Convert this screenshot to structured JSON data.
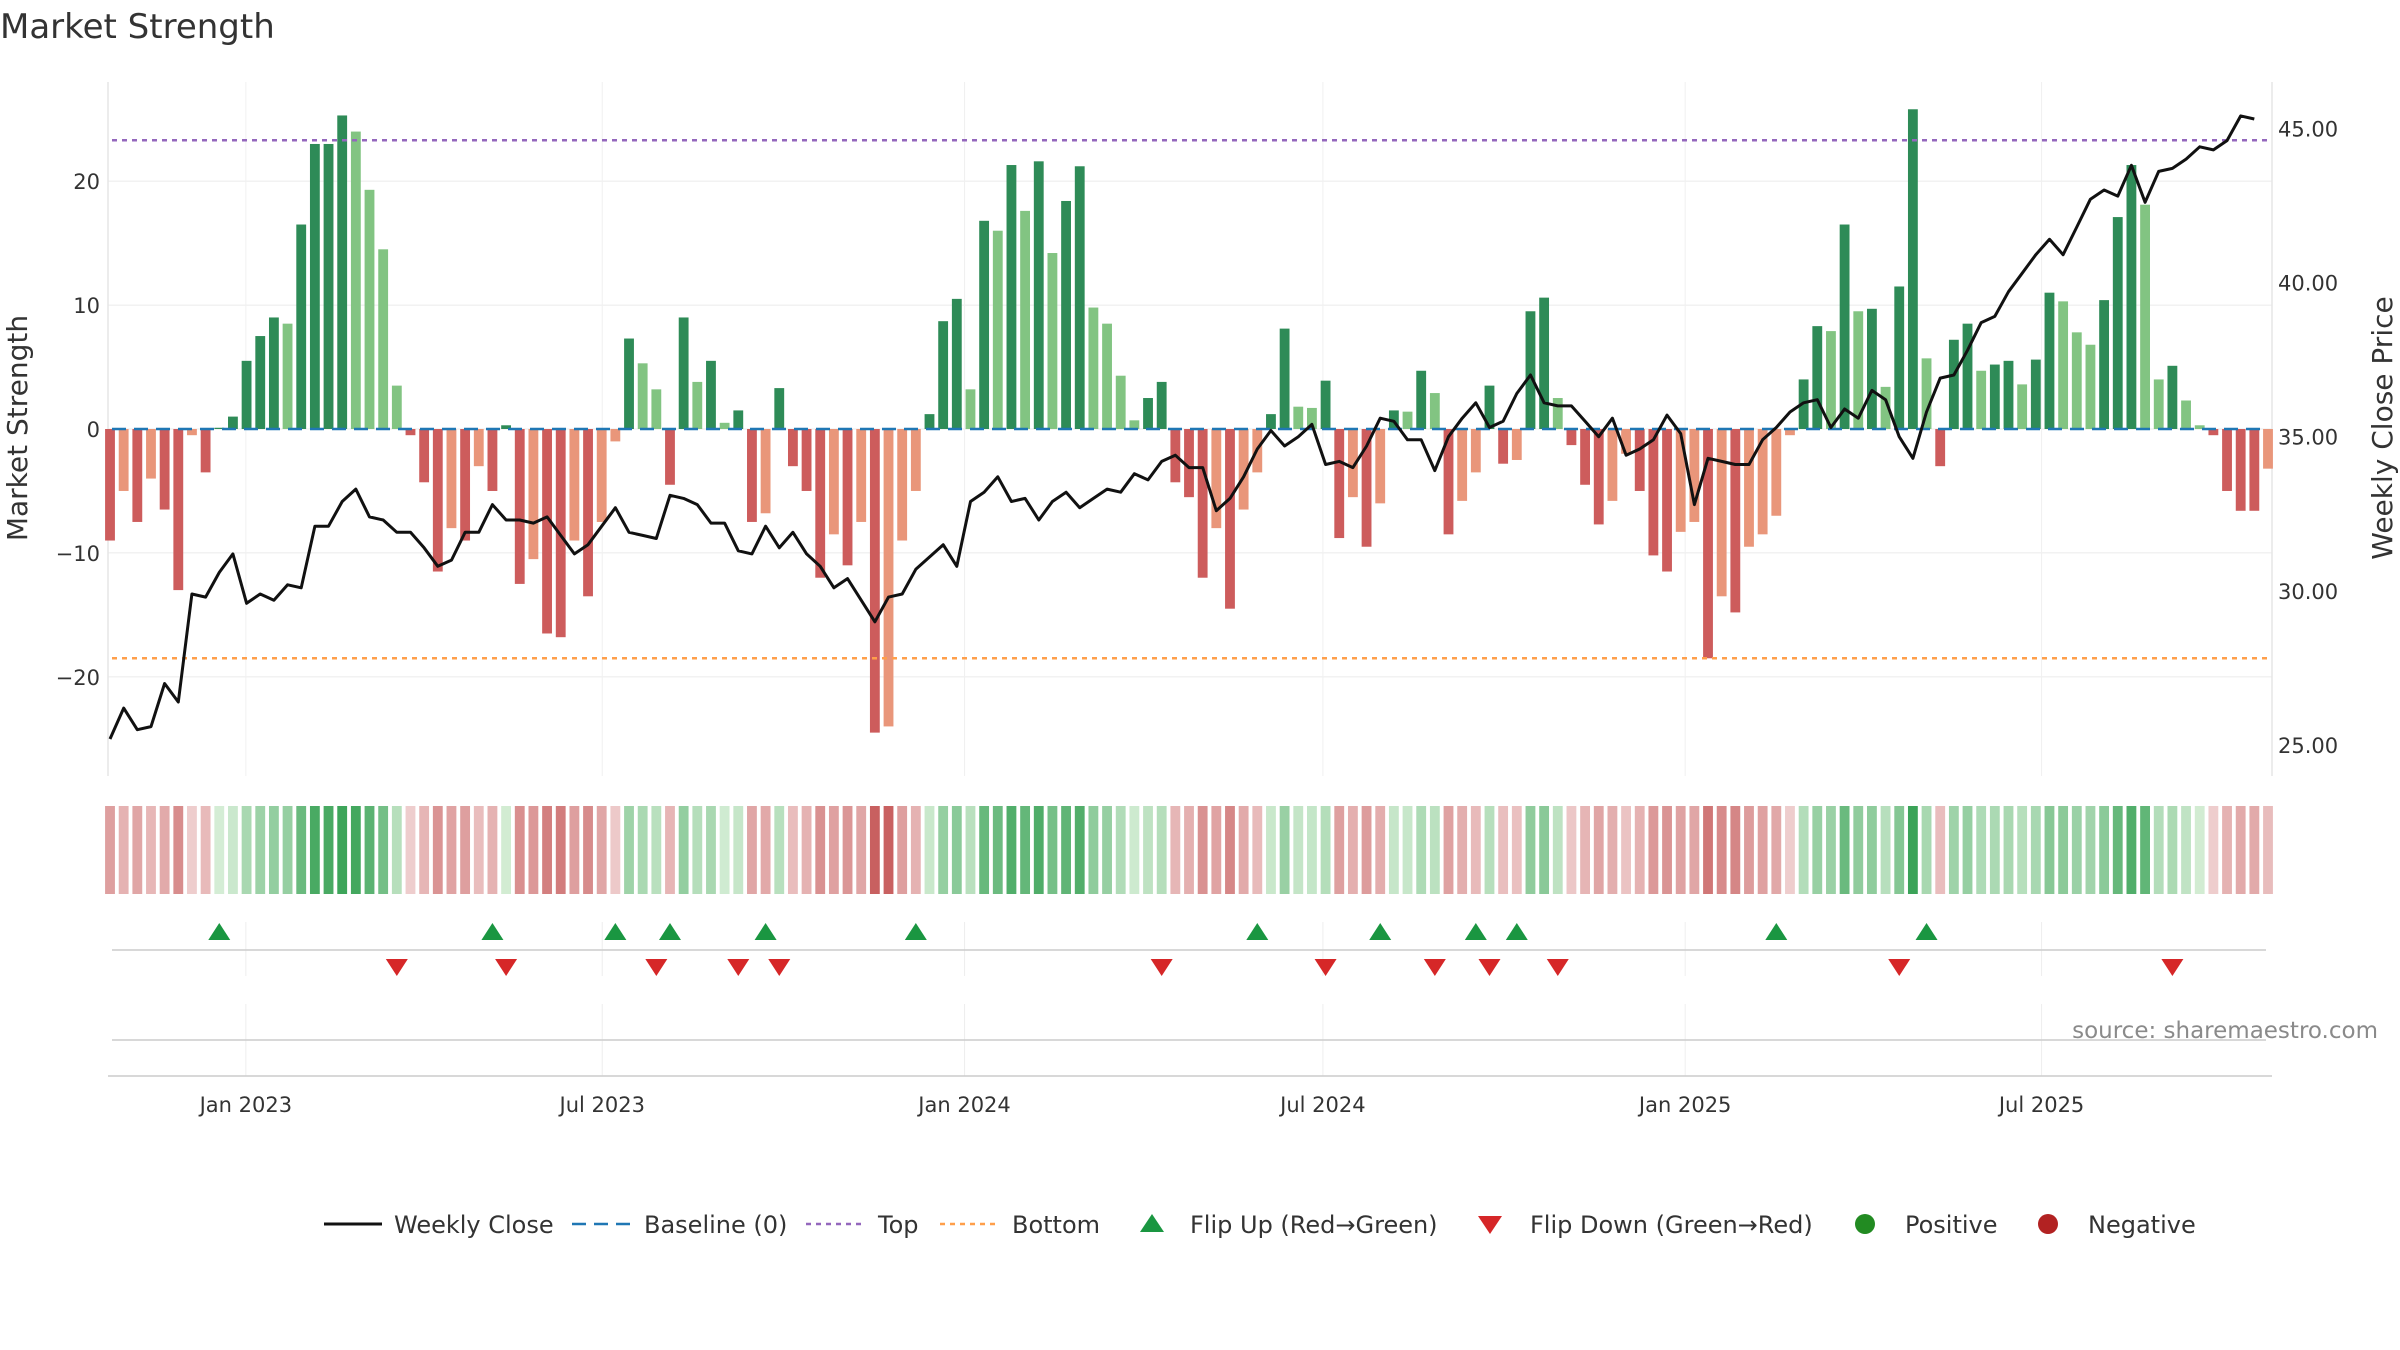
{
  "chart_data": {
    "type": "bar",
    "title": "Market Strength",
    "ylabel": "Market Strength",
    "ylabel_right": "Weekly Close Price",
    "source": "source: sharemaestro.com",
    "ylim": [
      -28,
      28
    ],
    "ylim_right": [
      24.0,
      46.5
    ],
    "yticks": [
      -20,
      -10,
      0,
      10,
      20
    ],
    "yticks_right": [
      "25.00",
      "30.00",
      "35.00",
      "40.00",
      "45.00"
    ],
    "x_start": "2022-10-24",
    "x_end": "2025-10-24",
    "top_level": 23.3,
    "bottom_level": -18.5,
    "x_ticks": [
      {
        "label": "Jan 2023",
        "date": "2023-01-01"
      },
      {
        "label": "Jul 2023",
        "date": "2023-07-01"
      },
      {
        "label": "Jan 2024",
        "date": "2024-01-01"
      },
      {
        "label": "Jul 2024",
        "date": "2024-07-01"
      },
      {
        "label": "Jan 2025",
        "date": "2025-01-01"
      },
      {
        "label": "Jul 2025",
        "date": "2025-07-01"
      }
    ],
    "strength": [
      -9,
      -5,
      -7.5,
      -4,
      -6.5,
      -13,
      -0.5,
      -3.5,
      0.1,
      1,
      5.5,
      7.5,
      9,
      8.5,
      16.5,
      23,
      23,
      25.3,
      24,
      19.3,
      14.5,
      3.5,
      -0.5,
      -4.3,
      -11.5,
      -8,
      -9,
      -3,
      -5,
      0.3,
      -12.5,
      -10.5,
      -16.5,
      -16.8,
      -9,
      -13.5,
      -7.5,
      -1,
      7.3,
      5.3,
      3.2,
      -4.5,
      9,
      3.8,
      5.5,
      0.5,
      1.5,
      -7.5,
      -6.8,
      3.3,
      -3,
      -5,
      -12,
      -8.5,
      -11,
      -7.5,
      -24.5,
      -24,
      -9,
      -5,
      1.2,
      8.7,
      10.5,
      3.2,
      16.8,
      16,
      21.3,
      17.6,
      21.6,
      14.2,
      18.4,
      21.2,
      9.8,
      8.5,
      4.3,
      0.7,
      2.5,
      3.8,
      -4.3,
      -5.5,
      -12,
      -8,
      -14.5,
      -6.5,
      -3.5,
      1.2,
      8.1,
      1.8,
      1.7,
      3.9,
      -8.8,
      -5.5,
      -9.5,
      -6,
      1.5,
      1.4,
      4.7,
      2.9,
      -8.5,
      -5.8,
      -3.5,
      3.5,
      -2.8,
      -2.5,
      9.5,
      10.6,
      2.5,
      -1.3,
      -4.5,
      -7.7,
      -5.8,
      -2,
      -5,
      -10.2,
      -11.5,
      -8.3,
      -7.5,
      -18.5,
      -13.5,
      -14.8,
      -9.5,
      -8.5,
      -7,
      -0.5,
      4,
      8.3,
      7.9,
      16.5,
      9.5,
      9.7,
      3.4,
      11.5,
      25.8,
      5.7,
      -3,
      7.2,
      8.5,
      4.7,
      5.2,
      5.5,
      3.6,
      5.6,
      11,
      10.3,
      7.8,
      6.8,
      10.4,
      17.1,
      21.3,
      18.1,
      4,
      5.1,
      2.3,
      0.3,
      -0.5,
      -5,
      -6.6,
      -6.6,
      -3.2
    ],
    "weekly_close": [
      25.2,
      26.2,
      25.5,
      25.6,
      27.0,
      26.4,
      29.9,
      29.8,
      30.6,
      31.2,
      29.6,
      29.9,
      29.7,
      30.2,
      30.1,
      32.1,
      32.1,
      32.9,
      33.3,
      32.4,
      32.3,
      31.9,
      31.9,
      31.4,
      30.8,
      31.0,
      31.9,
      31.9,
      32.8,
      32.3,
      32.3,
      32.2,
      32.4,
      31.8,
      31.2,
      31.5,
      32.1,
      32.7,
      31.9,
      31.8,
      31.7,
      33.1,
      33.0,
      32.8,
      32.2,
      32.2,
      31.3,
      31.2,
      32.1,
      31.4,
      31.9,
      31.2,
      30.8,
      30.1,
      30.4,
      29.7,
      29.0,
      29.8,
      29.9,
      30.7,
      31.1,
      31.5,
      30.8,
      32.9,
      33.2,
      33.7,
      32.9,
      33.0,
      32.3,
      32.9,
      33.2,
      32.7,
      33.0,
      33.3,
      33.2,
      33.8,
      33.6,
      34.2,
      34.4,
      34.0,
      34.0,
      32.6,
      33.0,
      33.7,
      34.6,
      35.2,
      34.7,
      35.0,
      35.4,
      34.1,
      34.2,
      34.0,
      34.7,
      35.6,
      35.5,
      34.9,
      34.9,
      33.9,
      35.0,
      35.6,
      36.1,
      35.3,
      35.5,
      36.4,
      37.0,
      36.1,
      36.0,
      36.0,
      35.5,
      35.0,
      35.6,
      34.4,
      34.6,
      34.9,
      35.7,
      35.1,
      32.8,
      34.3,
      34.2,
      34.1,
      34.1,
      34.9,
      35.3,
      35.8,
      36.1,
      36.2,
      35.3,
      35.9,
      35.6,
      36.5,
      36.2,
      35.0,
      34.3,
      35.8,
      36.9,
      37.0,
      37.8,
      38.7,
      38.9,
      39.7,
      40.3,
      40.9,
      41.4,
      40.9,
      41.8,
      42.7,
      43.0,
      42.8,
      43.8,
      42.6,
      43.6,
      43.7,
      44.0,
      44.4,
      44.3,
      44.6,
      45.4,
      45.3
    ],
    "flip_up": [
      8,
      28,
      37,
      41,
      48,
      59,
      84,
      93,
      100,
      103,
      122,
      133
    ],
    "flip_down": [
      21,
      29,
      40,
      46,
      49,
      77,
      89,
      97,
      101,
      106,
      131,
      151
    ],
    "legend": [
      {
        "key": "close",
        "label": "Weekly Close"
      },
      {
        "key": "baseline",
        "label": "Baseline (0)"
      },
      {
        "key": "top",
        "label": "Top"
      },
      {
        "key": "bottom",
        "label": "Bottom"
      },
      {
        "key": "flip_up",
        "label": "Flip Up (Red→Green)"
      },
      {
        "key": "flip_down",
        "label": "Flip Down (Green→Red)"
      },
      {
        "key": "positive",
        "label": "Positive"
      },
      {
        "key": "negative",
        "label": "Negative"
      }
    ],
    "colors": {
      "pos_dark": "#2e8b57",
      "pos_light": "#82c482",
      "neg_dark": "#cd5c5c",
      "neg_light": "#e9967a",
      "close": "#111111",
      "baseline": "#1f77b4",
      "top": "#9467bd",
      "bottom": "#ff9f4a",
      "flip_up": "#1a9641",
      "flip_down": "#d62728",
      "positive": "#228b22",
      "negative": "#b22222"
    }
  }
}
